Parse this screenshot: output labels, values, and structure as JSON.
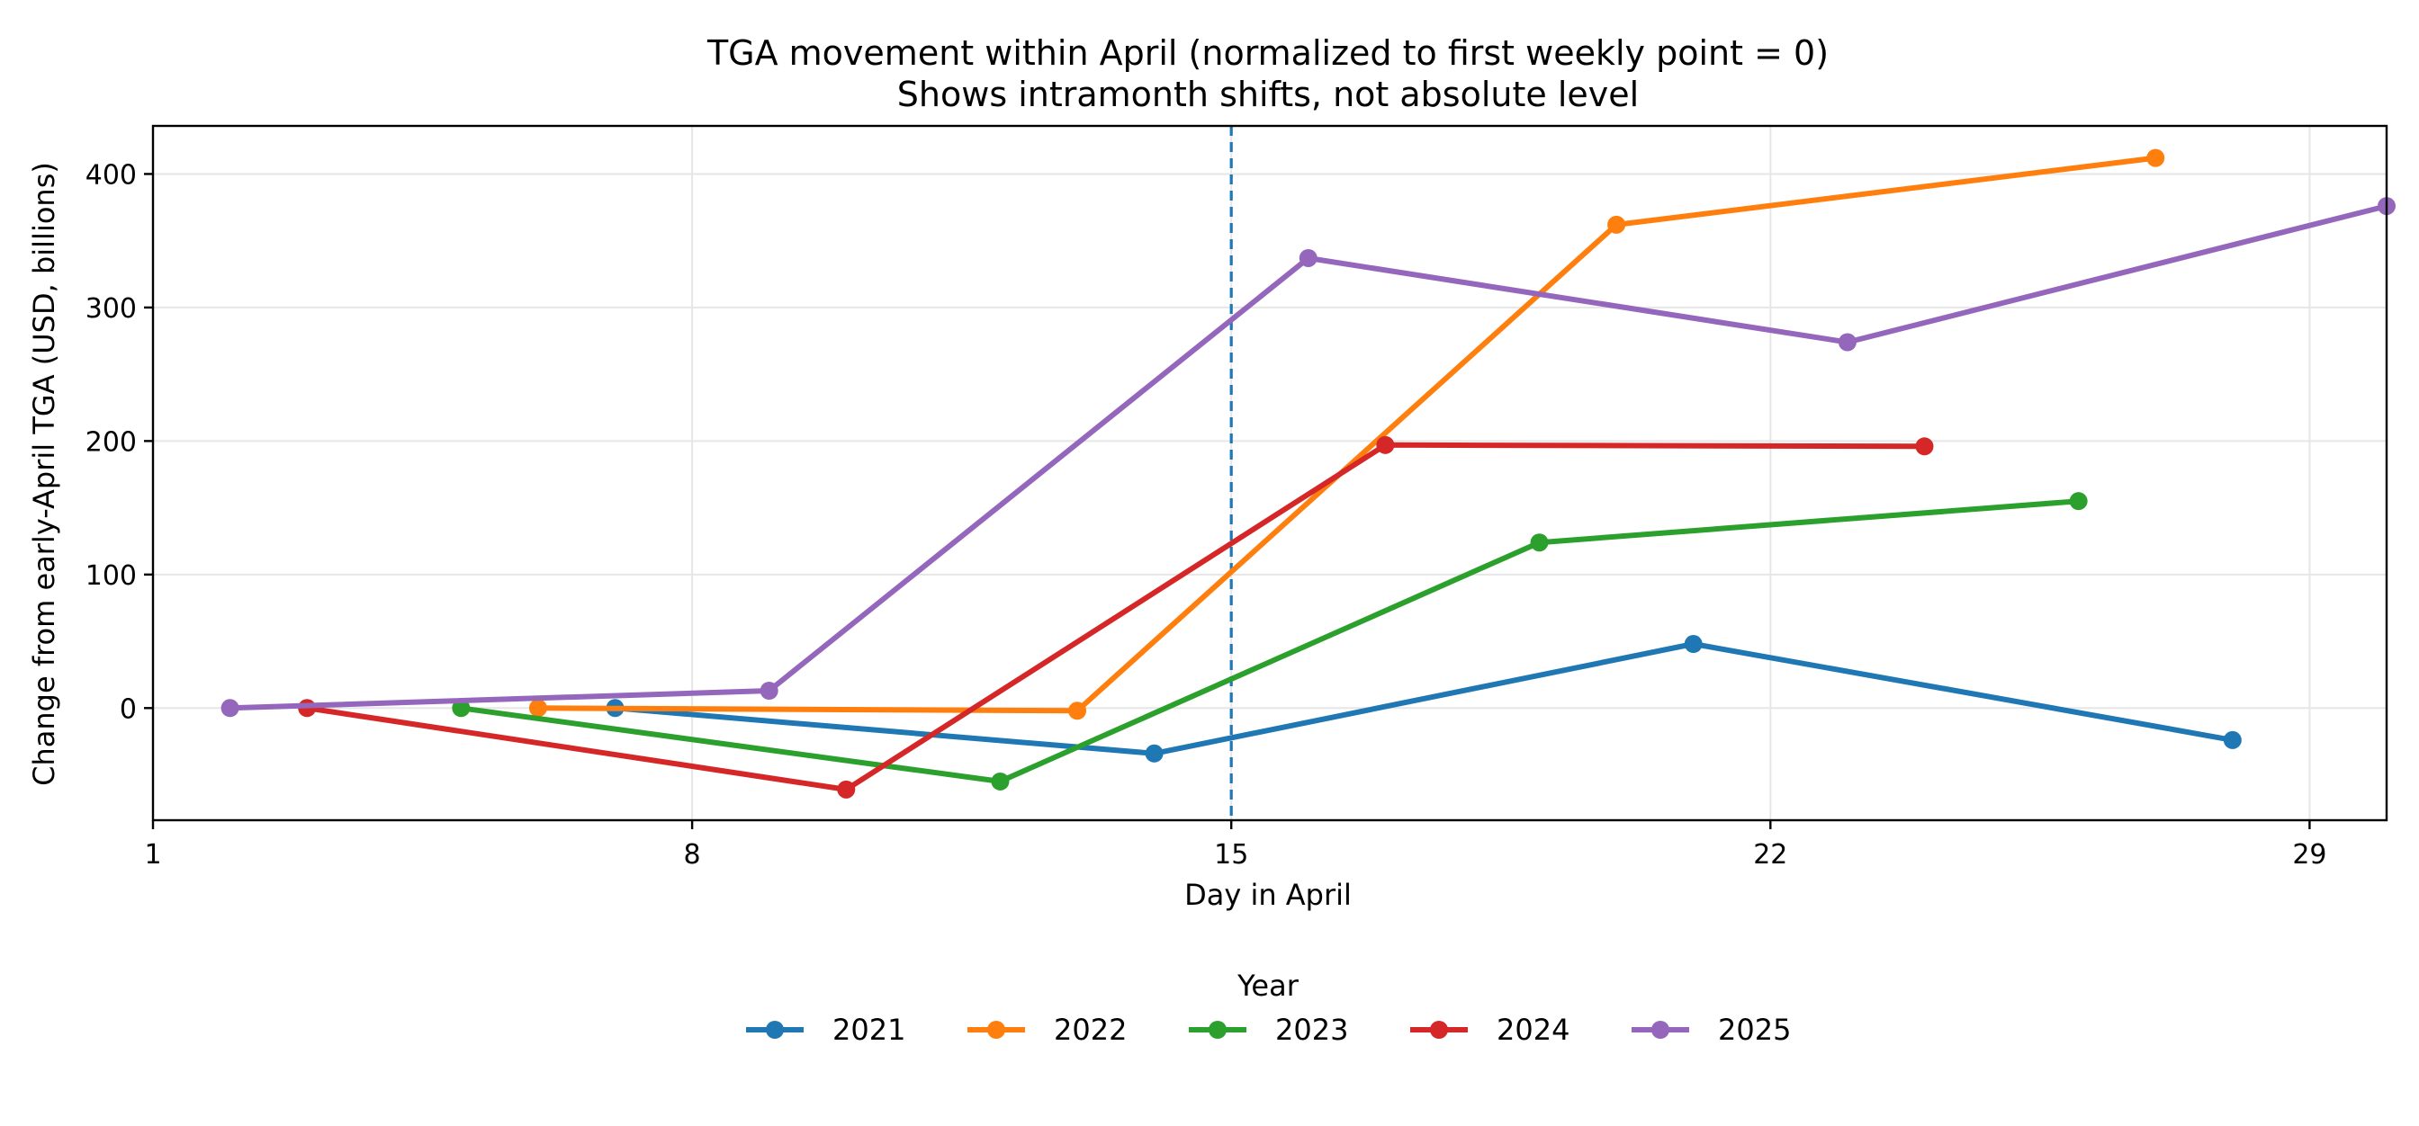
{
  "chart_data": {
    "type": "line",
    "title": "TGA movement within April (normalized to first weekly point = 0)",
    "subtitle": "Shows intramonth shifts, not absolute level",
    "xlabel": "Day in April",
    "ylabel": "Change from early-April TGA (USD, billions)",
    "xlim": [
      1,
      30
    ],
    "ylim": [
      -84,
      436
    ],
    "x_ticks": [
      1,
      8,
      15,
      22,
      29
    ],
    "y_ticks": [
      0,
      100,
      200,
      300,
      400
    ],
    "grid": true,
    "reference_line": {
      "x": 15,
      "style": "dashed",
      "color": "#1f77b4"
    },
    "legend": {
      "title": "Year",
      "position": "bottom-center"
    },
    "series": [
      {
        "name": "2021",
        "color": "#1f77b4",
        "points": [
          [
            7,
            0
          ],
          [
            14,
            -34
          ],
          [
            21,
            48
          ],
          [
            28,
            -24
          ]
        ]
      },
      {
        "name": "2022",
        "color": "#ff7f0e",
        "points": [
          [
            6,
            0
          ],
          [
            13,
            -2
          ],
          [
            20,
            362
          ],
          [
            27,
            412
          ]
        ]
      },
      {
        "name": "2023",
        "color": "#2ca02c",
        "points": [
          [
            5,
            0
          ],
          [
            12,
            -55
          ],
          [
            19,
            124
          ],
          [
            26,
            155
          ]
        ]
      },
      {
        "name": "2024",
        "color": "#d62728",
        "points": [
          [
            3,
            0
          ],
          [
            10,
            -61
          ],
          [
            17,
            197
          ],
          [
            24,
            196
          ]
        ]
      },
      {
        "name": "2025",
        "color": "#9467bd",
        "points": [
          [
            2,
            0
          ],
          [
            9,
            13
          ],
          [
            16,
            337
          ],
          [
            23,
            274
          ],
          [
            30,
            376
          ]
        ]
      }
    ]
  }
}
